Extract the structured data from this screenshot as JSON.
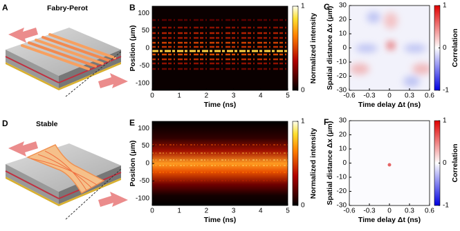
{
  "panels": [
    {
      "letter": "A",
      "title": "Fabry-Perot"
    },
    {
      "letter": "D",
      "title": "Stable"
    }
  ],
  "chart_data": [
    {
      "type": "heatmap",
      "letter": "B",
      "xlabel": "Time (ns)",
      "ylabel": "Position (μm)",
      "xlim": [
        0,
        5
      ],
      "xticks": [
        0,
        1,
        2,
        3,
        4,
        5
      ],
      "ylim": [
        -120,
        120
      ],
      "yticks": [
        -100,
        -50,
        0,
        50,
        100
      ],
      "colorbar": {
        "label": "Normalized intensity",
        "lim": [
          0,
          1
        ],
        "ticks": [
          0,
          1
        ],
        "colormap": "hot"
      }
    },
    {
      "type": "heatmap",
      "letter": "C",
      "xlabel": "Time delay Δt (ns)",
      "ylabel": "Spatial distance Δx (μm)",
      "xlim": [
        -0.6,
        0.6
      ],
      "xticks": [
        -0.6,
        -0.3,
        0,
        0.3,
        0.6
      ],
      "ylim": [
        -30,
        30
      ],
      "yticks": [
        -30,
        -20,
        -10,
        0,
        10,
        20,
        30
      ],
      "colorbar": {
        "label": "Correlation",
        "lim": [
          -1,
          1
        ],
        "ticks": [
          -1,
          0,
          1
        ],
        "colormap": "bwr"
      }
    },
    {
      "type": "heatmap",
      "letter": "E",
      "xlabel": "Time (ns)",
      "ylabel": "Position (μm)",
      "xlim": [
        0,
        5
      ],
      "xticks": [
        0,
        1,
        2,
        3,
        4,
        5
      ],
      "ylim": [
        -120,
        120
      ],
      "yticks": [
        -100,
        -50,
        0,
        50,
        100
      ],
      "colorbar": {
        "label": "Normalized intensity",
        "lim": [
          0,
          1
        ],
        "ticks": [
          0,
          1
        ],
        "colormap": "hot"
      }
    },
    {
      "type": "heatmap",
      "letter": "F",
      "xlabel": "Time delay Δt (ns)",
      "ylabel": "Spatial distance Δx (μm)",
      "xlim": [
        -0.6,
        0.6
      ],
      "xticks": [
        -0.6,
        -0.3,
        0,
        0.3,
        0.6
      ],
      "ylim": [
        -30,
        30
      ],
      "yticks": [
        -30,
        -20,
        -10,
        0,
        10,
        20,
        30
      ],
      "colorbar": {
        "label": "Correlation",
        "lim": [
          -1,
          1
        ],
        "ticks": [
          -1,
          0,
          1
        ],
        "colormap": "bwr"
      }
    }
  ]
}
